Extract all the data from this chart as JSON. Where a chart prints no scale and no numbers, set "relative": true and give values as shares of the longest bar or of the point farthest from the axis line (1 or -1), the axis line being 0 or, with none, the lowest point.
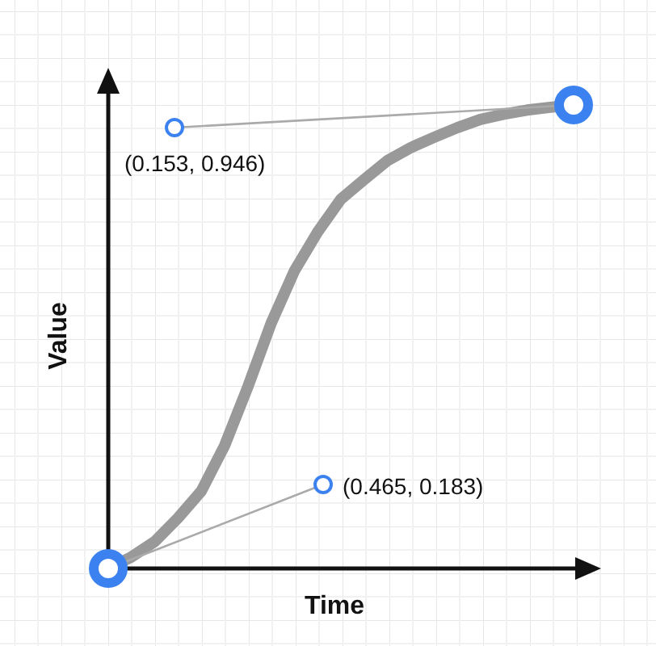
{
  "chart_data": {
    "type": "line",
    "relative": true,
    "xlabel": "Time",
    "ylabel": "Value",
    "categories": [
      null,
      null,
      null,
      null,
      null,
      null,
      null,
      null,
      null,
      null,
      null,
      null,
      null,
      null,
      null,
      null,
      null,
      null,
      null,
      null,
      null
    ],
    "series": [
      {
        "color": "#999999",
        "values": [
          0,
          0.025,
          0.058,
          0.109,
          0.167,
          0.265,
          0.392,
          0.529,
          0.642,
          0.726,
          0.797,
          0.839,
          0.88,
          0.908,
          0.93,
          0.951,
          0.969,
          0.98,
          0.989,
          0.995,
          1
        ]
      }
    ],
    "annotations": [
      "(0.153, 0.946)",
      "(0.465, 0.183)"
    ]
  }
}
